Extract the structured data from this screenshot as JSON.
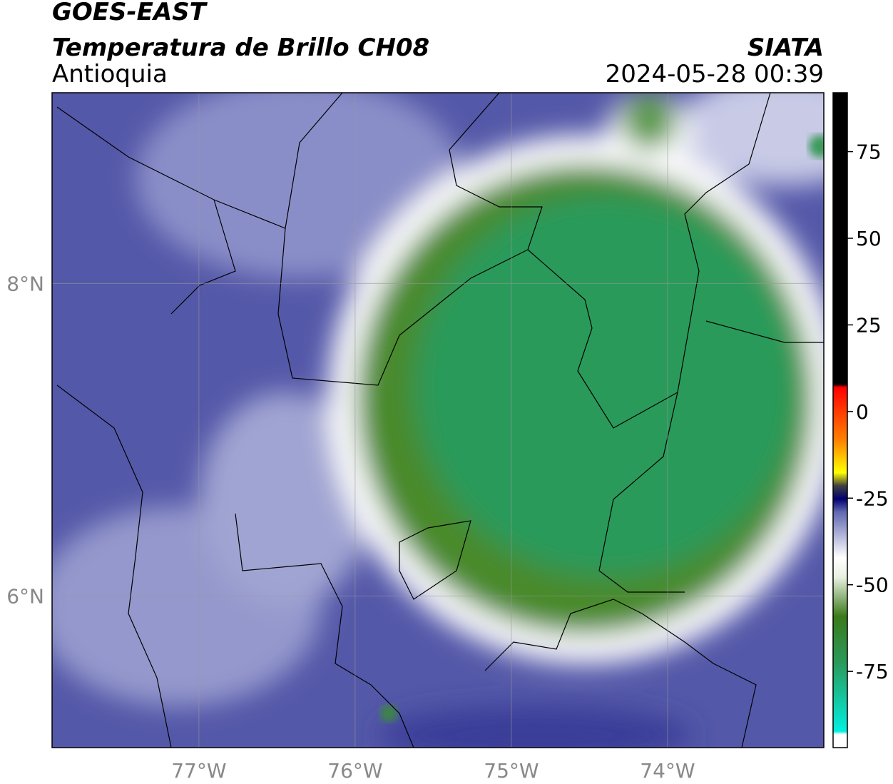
{
  "header": {
    "satellite": "GOES-EAST",
    "product": "Temperatura de Brillo CH08",
    "region": "Antioquia",
    "source": "SIATA",
    "datetime": "2024-05-28 00:39"
  },
  "map": {
    "lonlim": [
      -77.94,
      -73.0
    ],
    "latlim": [
      5.03,
      9.22
    ],
    "lonticks": [
      {
        "value": -77,
        "label": "77°W"
      },
      {
        "value": -76,
        "label": "76°W"
      },
      {
        "value": -75,
        "label": "75°W"
      },
      {
        "value": -74,
        "label": "74°W"
      }
    ],
    "latticks": [
      {
        "value": 8,
        "label": "8°N"
      },
      {
        "value": 6,
        "label": "6°N"
      }
    ]
  },
  "colorbar": {
    "range": [
      -97,
      92
    ],
    "ticks": [
      75,
      50,
      25,
      0,
      -25,
      -50,
      -75
    ]
  }
}
